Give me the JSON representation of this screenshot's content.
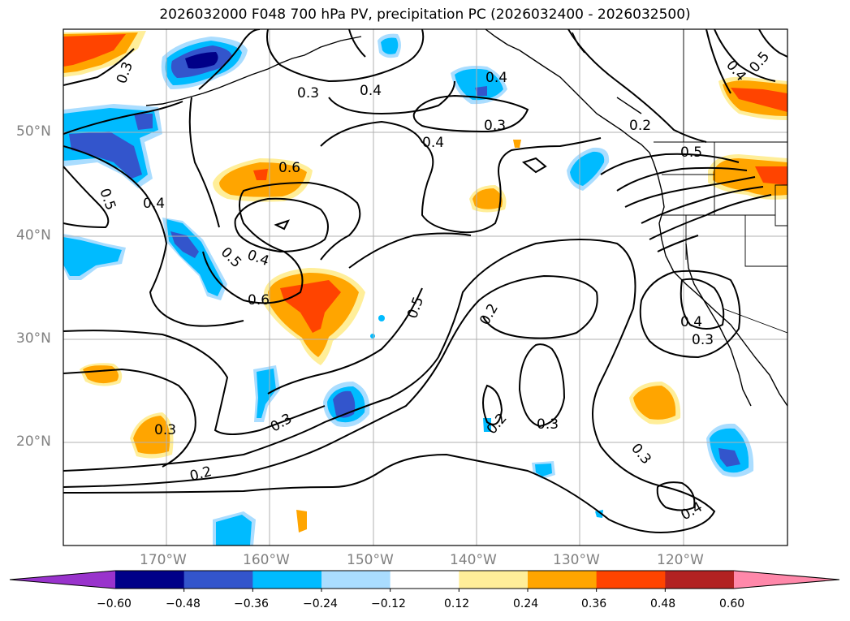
{
  "title": "2026032000 F048 700 hPa PV, precipitation PC (2026032400 - 2026032500)",
  "lat_labels": [
    "50°N",
    "40°N",
    "30°N",
    "20°N"
  ],
  "lon_labels": [
    "170°W",
    "160°W",
    "150°W",
    "140°W",
    "130°W",
    "120°W"
  ],
  "contour_labels": [
    "0.3",
    "0.3",
    "0.4",
    "0.4",
    "0.3",
    "0.4",
    "0.2",
    "0.5",
    "0.6",
    "0.4",
    "0.5",
    "0.5",
    "0.4",
    "0.6",
    "0.5",
    "0.2",
    "0.4",
    "0.3",
    "0.3",
    "0.3",
    "0.2",
    "0.3",
    "0.2",
    "0.3",
    "0.4",
    "0.4",
    "0.5"
  ],
  "colorbar": {
    "ticks": [
      "−0.60",
      "−0.48",
      "−0.36",
      "−0.24",
      "−0.12",
      "0.12",
      "0.24",
      "0.36",
      "0.48",
      "0.60"
    ],
    "colors": [
      "#9933cc",
      "#000088",
      "#3355cc",
      "#00bbff",
      "#aaddff",
      "#ffffff",
      "#ffee99",
      "#ffa500",
      "#ff4400",
      "#b22222",
      "#ff88aa"
    ]
  },
  "colors": {
    "coast": "#000000",
    "grid": "#b0b0b0",
    "contour": "#000000"
  }
}
